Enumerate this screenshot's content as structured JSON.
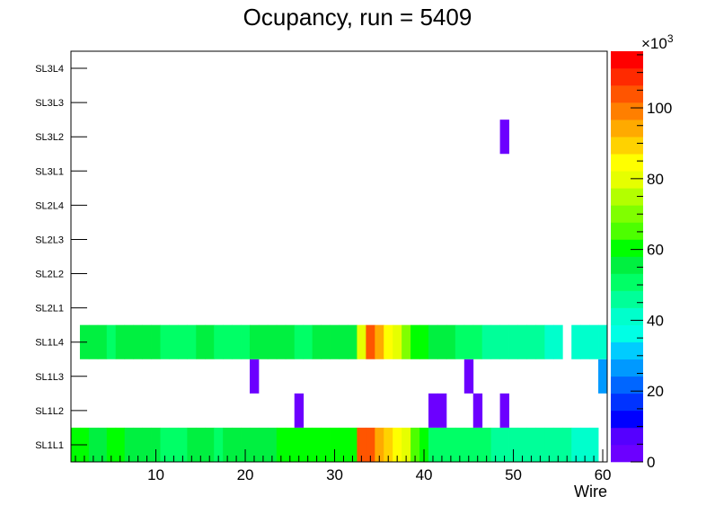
{
  "chart_data": {
    "type": "heatmap",
    "title": "Ocupancy, run = 5409",
    "xlabel": "Wire",
    "ylabel": "",
    "x_range": [
      0.5,
      60.5
    ],
    "x_ticks": [
      10,
      20,
      30,
      40,
      50,
      60
    ],
    "layers": [
      "SL1L1",
      "SL1L2",
      "SL1L3",
      "SL1L4",
      "SL2L1",
      "SL2L2",
      "SL2L3",
      "SL2L4",
      "SL3L1",
      "SL3L2",
      "SL3L3",
      "SL3L4"
    ],
    "colorbar": {
      "range": [
        0,
        116
      ],
      "ticks": [
        0,
        20,
        40,
        60,
        80,
        100
      ],
      "multiplier": "×10",
      "multiplier_exp": "3",
      "palette": [
        "#6c00ff",
        "#5500ff",
        "#0000ff",
        "#0033ff",
        "#0066ff",
        "#0099ff",
        "#00ccff",
        "#00ffe5",
        "#00ffcc",
        "#00ff99",
        "#00ff66",
        "#00f040",
        "#00ff00",
        "#4dff00",
        "#80ff00",
        "#b3ff00",
        "#e6ff00",
        "#ffff00",
        "#ffd200",
        "#ffaa00",
        "#ff7f00",
        "#ff5500",
        "#ff2a00",
        "#ff0000"
      ]
    },
    "rows": {
      "SL1L1": [
        60,
        58,
        56,
        56,
        58,
        58,
        56,
        56,
        56,
        56,
        52,
        52,
        52,
        56,
        56,
        54,
        52,
        56,
        56,
        56,
        56,
        56,
        56,
        60,
        60,
        58,
        58,
        58,
        58,
        58,
        58,
        60,
        106,
        104,
        96,
        90,
        84,
        78,
        64,
        60,
        50,
        50,
        50,
        50,
        50,
        50,
        52,
        46,
        46,
        46,
        46,
        46,
        46,
        46,
        46,
        46,
        40,
        40,
        40,
        0
      ],
      "SL1L2": [
        0,
        0,
        0,
        0,
        0,
        0,
        0,
        0,
        0,
        0,
        0,
        0,
        0,
        0,
        0,
        0,
        0,
        0,
        0,
        0,
        0,
        0,
        0,
        0,
        0,
        4,
        0,
        0,
        0,
        0,
        0,
        0,
        0,
        0,
        0,
        0,
        0,
        0,
        0,
        0,
        4,
        4,
        0,
        0,
        0,
        4,
        0,
        0,
        4,
        0,
        0,
        0,
        0,
        0,
        0,
        0,
        0,
        0,
        0,
        0
      ],
      "SL1L3": [
        0,
        0,
        0,
        0,
        0,
        0,
        0,
        0,
        0,
        0,
        0,
        0,
        0,
        0,
        0,
        0,
        0,
        0,
        0,
        0,
        4,
        0,
        0,
        0,
        0,
        0,
        0,
        0,
        0,
        0,
        0,
        0,
        0,
        0,
        0,
        0,
        0,
        0,
        0,
        0,
        0,
        0,
        0,
        0,
        4,
        0,
        0,
        0,
        0,
        0,
        0,
        0,
        0,
        0,
        0,
        0,
        0,
        0,
        0,
        28
      ],
      "SL1L4": [
        0,
        54,
        54,
        54,
        52,
        56,
        56,
        56,
        54,
        54,
        50,
        50,
        52,
        52,
        54,
        54,
        50,
        52,
        52,
        52,
        56,
        56,
        56,
        56,
        56,
        52,
        52,
        56,
        56,
        56,
        56,
        56,
        82,
        106,
        96,
        86,
        78,
        68,
        60,
        60,
        56,
        54,
        54,
        50,
        50,
        50,
        48,
        48,
        48,
        48,
        48,
        48,
        48,
        40,
        40,
        0,
        40,
        40,
        40,
        40
      ],
      "SL2L1": [
        0,
        0,
        0,
        0,
        0,
        0,
        0,
        0,
        0,
        0,
        0,
        0,
        0,
        0,
        0,
        0,
        0,
        0,
        0,
        0,
        0,
        0,
        0,
        0,
        0,
        0,
        0,
        0,
        0,
        0,
        0,
        0,
        0,
        0,
        0,
        0,
        0,
        0,
        0,
        0,
        0,
        0,
        0,
        0,
        0,
        0,
        0,
        0,
        0,
        0,
        0,
        0,
        0,
        0,
        0,
        0,
        0,
        0,
        0,
        0
      ],
      "SL2L2": [
        0,
        0,
        0,
        0,
        0,
        0,
        0,
        0,
        0,
        0,
        0,
        0,
        0,
        0,
        0,
        0,
        0,
        0,
        0,
        0,
        0,
        0,
        0,
        0,
        0,
        0,
        0,
        0,
        0,
        0,
        0,
        0,
        0,
        0,
        0,
        0,
        0,
        0,
        0,
        0,
        0,
        0,
        0,
        0,
        0,
        0,
        0,
        0,
        0,
        0,
        0,
        0,
        0,
        0,
        0,
        0,
        0,
        0,
        0,
        0
      ],
      "SL2L3": [
        0,
        0,
        0,
        0,
        0,
        0,
        0,
        0,
        0,
        0,
        0,
        0,
        0,
        0,
        0,
        0,
        0,
        0,
        0,
        0,
        0,
        0,
        0,
        0,
        0,
        0,
        0,
        0,
        0,
        0,
        0,
        0,
        0,
        0,
        0,
        0,
        0,
        0,
        0,
        0,
        0,
        0,
        0,
        0,
        0,
        0,
        0,
        0,
        0,
        0,
        0,
        0,
        0,
        0,
        0,
        0,
        0,
        0,
        0,
        0
      ],
      "SL2L4": [
        0,
        0,
        0,
        0,
        0,
        0,
        0,
        0,
        0,
        0,
        0,
        0,
        0,
        0,
        0,
        0,
        0,
        0,
        0,
        0,
        0,
        0,
        0,
        0,
        0,
        0,
        0,
        0,
        0,
        0,
        0,
        0,
        0,
        0,
        0,
        0,
        0,
        0,
        0,
        0,
        0,
        0,
        0,
        0,
        0,
        0,
        0,
        0,
        0,
        0,
        0,
        0,
        0,
        0,
        0,
        0,
        0,
        0,
        0,
        0
      ],
      "SL3L1": [
        0,
        0,
        0,
        0,
        0,
        0,
        0,
        0,
        0,
        0,
        0,
        0,
        0,
        0,
        0,
        0,
        0,
        0,
        0,
        0,
        0,
        0,
        0,
        0,
        0,
        0,
        0,
        0,
        0,
        0,
        0,
        0,
        0,
        0,
        0,
        0,
        0,
        0,
        0,
        0,
        0,
        0,
        0,
        0,
        0,
        0,
        0,
        0,
        0,
        0,
        0,
        0,
        0,
        0,
        0,
        0,
        0,
        0,
        0,
        0
      ],
      "SL3L2": [
        0,
        0,
        0,
        0,
        0,
        0,
        0,
        0,
        0,
        0,
        0,
        0,
        0,
        0,
        0,
        0,
        0,
        0,
        0,
        0,
        0,
        0,
        0,
        0,
        0,
        0,
        0,
        0,
        0,
        0,
        0,
        0,
        0,
        0,
        0,
        0,
        0,
        0,
        0,
        0,
        0,
        0,
        0,
        0,
        0,
        0,
        0,
        0,
        4,
        0,
        0,
        0,
        0,
        0,
        0,
        0,
        0,
        0,
        0,
        0
      ],
      "SL3L3": [
        0,
        0,
        0,
        0,
        0,
        0,
        0,
        0,
        0,
        0,
        0,
        0,
        0,
        0,
        0,
        0,
        0,
        0,
        0,
        0,
        0,
        0,
        0,
        0,
        0,
        0,
        0,
        0,
        0,
        0,
        0,
        0,
        0,
        0,
        0,
        0,
        0,
        0,
        0,
        0,
        0,
        0,
        0,
        0,
        0,
        0,
        0,
        0,
        0,
        0,
        0,
        0,
        0,
        0,
        0,
        0,
        0,
        0,
        0,
        0
      ],
      "SL3L4": [
        0,
        0,
        0,
        0,
        0,
        0,
        0,
        0,
        0,
        0,
        0,
        0,
        0,
        0,
        0,
        0,
        0,
        0,
        0,
        0,
        0,
        0,
        0,
        0,
        0,
        0,
        0,
        0,
        0,
        0,
        0,
        0,
        0,
        0,
        0,
        0,
        0,
        0,
        0,
        0,
        0,
        0,
        0,
        0,
        0,
        0,
        0,
        0,
        0,
        0,
        0,
        0,
        0,
        0,
        0,
        0,
        0,
        0,
        0,
        0
      ]
    }
  }
}
